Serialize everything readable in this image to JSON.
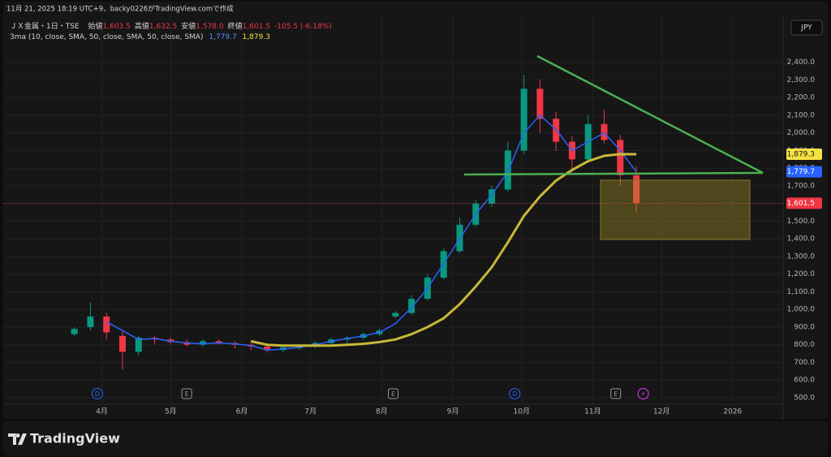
{
  "header": {
    "credit": "11月 21, 2025 18:19 UTC+9、backy0226がTradingView.comで作成",
    "symbol": "ＪＸ金属・1日・TSE",
    "ohlc": [
      {
        "label": "始値",
        "value": "1,603.5"
      },
      {
        "label": "高値",
        "value": "1,632.5"
      },
      {
        "label": "安値",
        "value": "1,578.0"
      },
      {
        "label": "終値",
        "value": "1,601.5"
      }
    ],
    "change": "-105.5 (-6.18%)",
    "indicator": "3ma (10, close, SMA, 50, close, SMA, 50, close, SMA)",
    "indicator_values": [
      "1,779.7",
      "1,879.3"
    ]
  },
  "currency": "JPY",
  "brand": "TradingView",
  "chart_data": {
    "type": "candlestick",
    "up_color": "#089981",
    "down_color": "#f23645",
    "x": [
      19,
      26,
      33,
      40,
      47,
      54,
      61,
      68,
      75,
      82,
      89,
      96,
      103,
      110,
      117,
      124,
      131,
      138,
      145,
      152,
      159,
      166,
      173,
      180,
      187,
      194,
      201,
      208,
      215,
      222,
      229,
      236,
      243,
      250,
      257,
      264
    ],
    "open": [
      860,
      900,
      960,
      850,
      760,
      840,
      830,
      815,
      800,
      820,
      810,
      800,
      790,
      770,
      780,
      790,
      810,
      830,
      840,
      860,
      960,
      980,
      1060,
      1180,
      1330,
      1480,
      1600,
      1680,
      1900,
      2250,
      2080,
      1950,
      1850,
      2050,
      1960,
      1760
    ],
    "high": [
      900,
      1040,
      980,
      880,
      850,
      850,
      840,
      830,
      830,
      830,
      820,
      810,
      800,
      790,
      800,
      820,
      840,
      850,
      870,
      890,
      990,
      1080,
      1200,
      1350,
      1520,
      1620,
      1700,
      1950,
      2330,
      2300,
      2120,
      1980,
      2100,
      2130,
      1990,
      1810
    ],
    "low": [
      850,
      880,
      830,
      660,
      740,
      800,
      800,
      790,
      790,
      800,
      780,
      770,
      755,
      760,
      770,
      780,
      800,
      810,
      830,
      850,
      950,
      970,
      1050,
      1170,
      1320,
      1470,
      1580,
      1670,
      1880,
      2000,
      1900,
      1780,
      1840,
      1940,
      1700,
      1550
    ],
    "close": [
      890,
      960,
      870,
      760,
      840,
      830,
      815,
      800,
      820,
      810,
      800,
      790,
      770,
      785,
      790,
      810,
      830,
      840,
      860,
      880,
      980,
      1060,
      1180,
      1330,
      1480,
      1600,
      1680,
      1900,
      2250,
      2080,
      1950,
      1850,
      2050,
      1960,
      1760,
      1601.5
    ],
    "lines": [
      {
        "color": "#2962ff",
        "values": [
          null,
          null,
          930,
          880,
          830,
          835,
          820,
          810,
          805,
          810,
          805,
          795,
          770,
          775,
          785,
          800,
          820,
          835,
          850,
          870,
          920,
          1010,
          1120,
          1260,
          1400,
          1540,
          1650,
          1780,
          2000,
          2100,
          2020,
          1900,
          1950,
          2000,
          1900,
          1779.7
        ]
      },
      {
        "color": "#c9b83a",
        "values": [
          null,
          null,
          null,
          null,
          null,
          null,
          null,
          null,
          null,
          null,
          null,
          820,
          800,
          795,
          795,
          795,
          795,
          800,
          805,
          815,
          830,
          860,
          900,
          950,
          1030,
          1130,
          1240,
          1380,
          1530,
          1640,
          1730,
          1790,
          1840,
          1870,
          1880,
          1879.3
        ]
      }
    ],
    "xlim": [
      -12,
      328
    ],
    "ylim": [
      463,
      2500
    ],
    "xticks": [
      {
        "value": 31,
        "label": "4月"
      },
      {
        "value": 61,
        "label": "5月"
      },
      {
        "value": 92,
        "label": "6月"
      },
      {
        "value": 122,
        "label": "7月"
      },
      {
        "value": 153,
        "label": "8月"
      },
      {
        "value": 184,
        "label": "9月"
      },
      {
        "value": 214,
        "label": "10月"
      },
      {
        "value": 245,
        "label": "11月"
      },
      {
        "value": 275,
        "label": "12月"
      },
      {
        "value": 306,
        "label": "2026"
      }
    ],
    "yticks": [
      {
        "value": 500,
        "label": "500.0"
      },
      {
        "value": 600,
        "label": "600.0"
      },
      {
        "value": 700,
        "label": "700.0"
      },
      {
        "value": 800,
        "label": "800.0"
      },
      {
        "value": 900,
        "label": "900.0"
      },
      {
        "value": 1000,
        "label": "1,000.0"
      },
      {
        "value": 1100,
        "label": "1,100.0"
      },
      {
        "value": 1200,
        "label": "1,200.0"
      },
      {
        "value": 1300,
        "label": "1,300.0"
      },
      {
        "value": 1400,
        "label": "1,400.0"
      },
      {
        "value": 1500,
        "label": "1,500.0"
      },
      {
        "value": 1600,
        "label": "1,600.0"
      },
      {
        "value": 1700,
        "label": "1,700.0"
      },
      {
        "value": 1800,
        "label": "1,800.0"
      },
      {
        "value": 1900,
        "label": "1,900.0"
      },
      {
        "value": 2000,
        "label": "2,000.0"
      },
      {
        "value": 2100,
        "label": "2,100.0"
      },
      {
        "value": 2200,
        "label": "2,200.0"
      },
      {
        "value": 2300,
        "label": "2,300.0"
      },
      {
        "value": 2400,
        "label": "2,400.0"
      }
    ],
    "grid": true,
    "price_labels": [
      {
        "value": 1879.3,
        "label": "1,879.3",
        "color": "#f5e142"
      },
      {
        "value": 1779.7,
        "label": "1,779.7",
        "color": "#2962ff"
      },
      {
        "value": 1601.5,
        "label": "1,601.5",
        "color": "#f23645"
      }
    ],
    "events": [
      {
        "x": 29,
        "label": "D"
      },
      {
        "x": 68,
        "label": "E"
      },
      {
        "x": 158,
        "label": "E"
      },
      {
        "x": 211,
        "label": "D"
      },
      {
        "x": 255,
        "label": "E"
      },
      {
        "x": 267,
        "label": "⚡"
      }
    ]
  }
}
